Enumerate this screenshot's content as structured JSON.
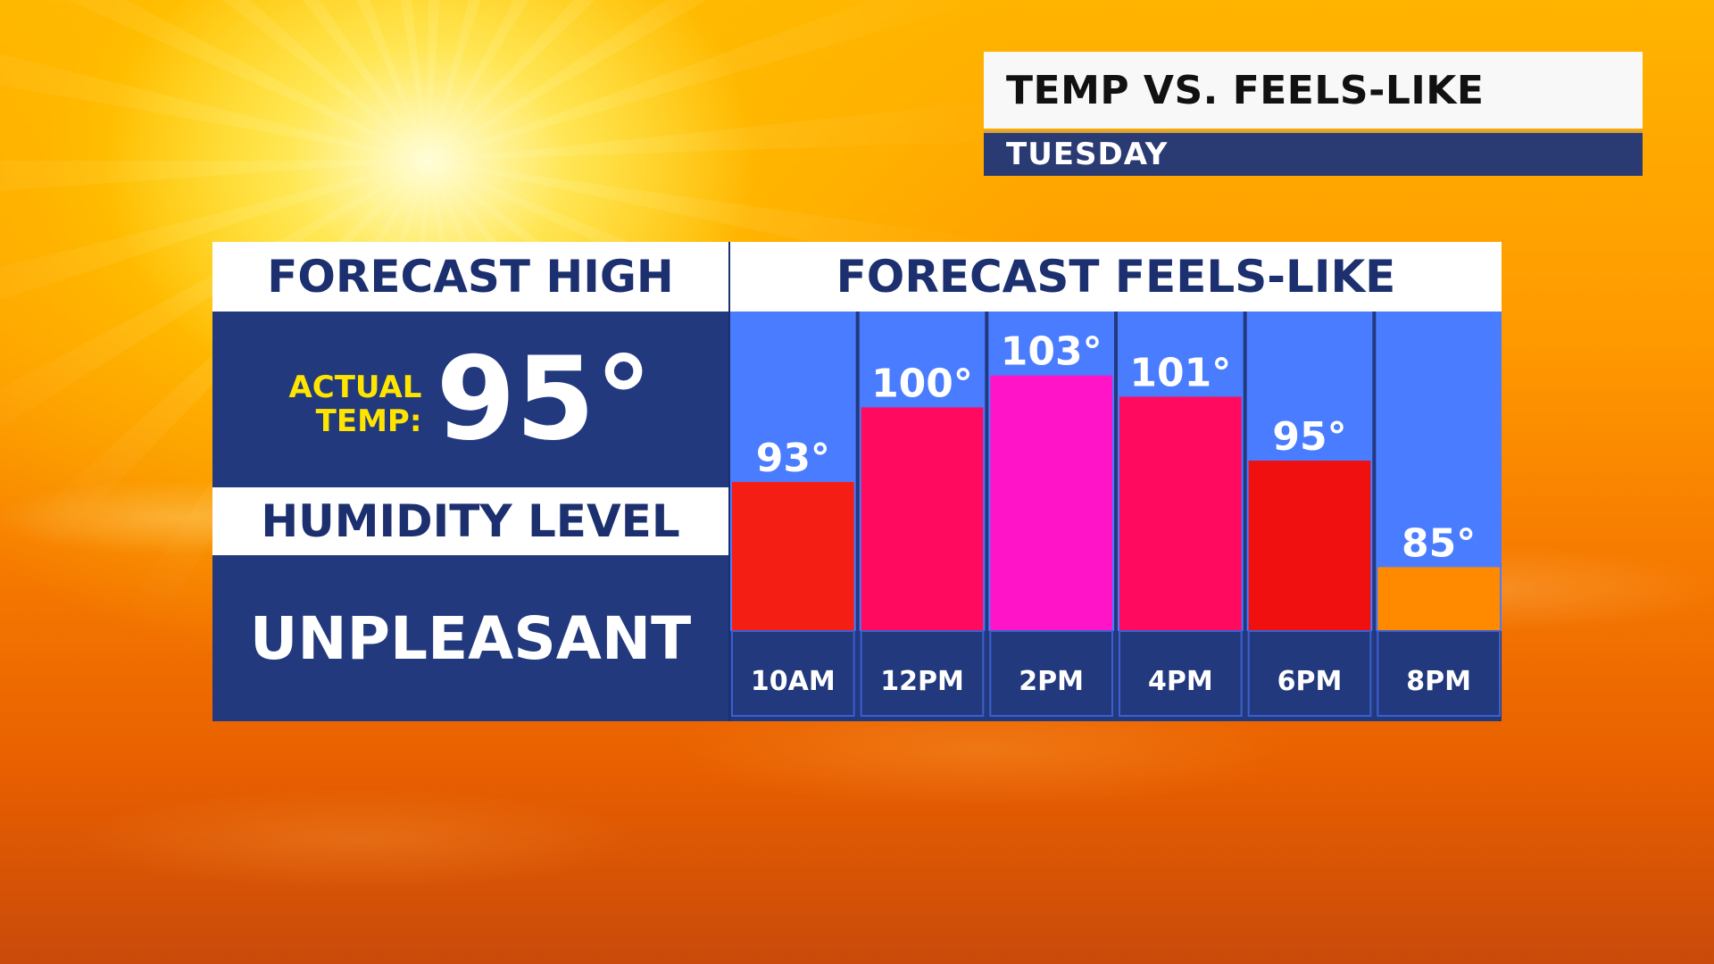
{
  "header": {
    "title": "TEMP VS. FEELS-LIKE",
    "day": "TUESDAY"
  },
  "left_panel": {
    "forecast_high_heading": "FORECAST HIGH",
    "actual_label_line1": "ACTUAL",
    "actual_label_line2": "TEMP:",
    "high_value": "95°",
    "humidity_heading": "HUMIDITY LEVEL",
    "humidity_value": "UNPLEASANT"
  },
  "right_panel": {
    "heading": "FORECAST FEELS-LIKE"
  },
  "colors": {
    "navy": "#22397e",
    "column_bg": "#4a7cff",
    "label_strip": "#22397e"
  },
  "chart_data": {
    "type": "bar",
    "title": "FORECAST FEELS-LIKE",
    "categories": [
      "10AM",
      "12PM",
      "2PM",
      "4PM",
      "6PM",
      "8PM"
    ],
    "values": [
      93,
      100,
      103,
      101,
      95,
      85
    ],
    "value_labels": [
      "93°",
      "100°",
      "103°",
      "101°",
      "95°",
      "85°"
    ],
    "bar_colors": [
      "#f51e14",
      "#ff0a5f",
      "#ff14c8",
      "#ff0a5f",
      "#f0100f",
      "#ff8a00"
    ],
    "unit": "°",
    "ylim": [
      79,
      109
    ],
    "grid": false,
    "legend": "none"
  }
}
